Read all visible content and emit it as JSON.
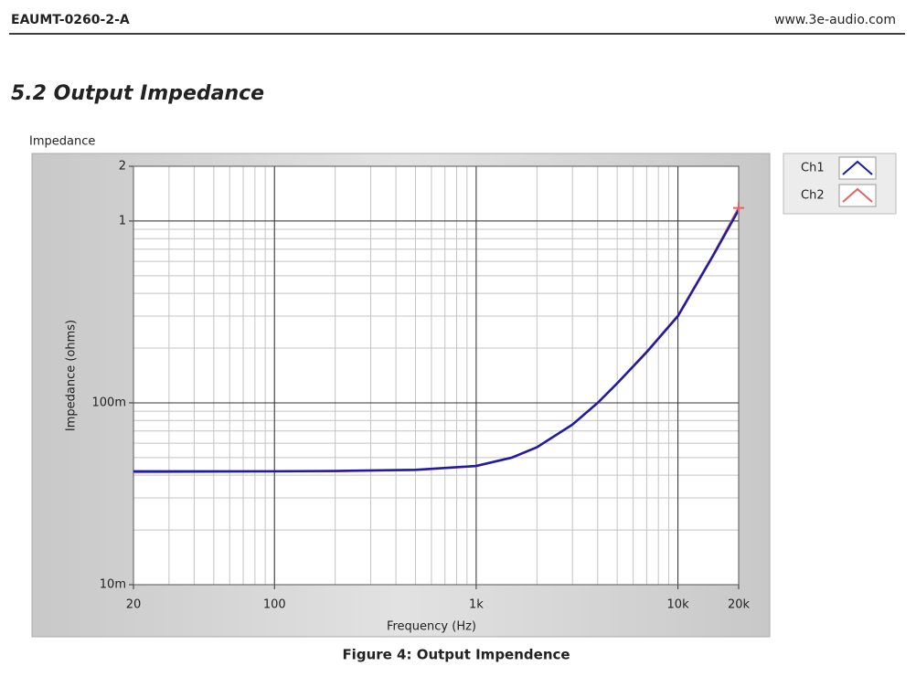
{
  "header": {
    "doc_id": "EAUMT-0260-2-A",
    "website": "www.3e-audio.com"
  },
  "section_title": "5.2 Output Impedance",
  "chart_data": {
    "type": "line",
    "title": "Impedance",
    "x_label": "Frequency (Hz)",
    "y_label": "Impedance (ohms)",
    "x": [
      20,
      50,
      100,
      200,
      500,
      1000,
      1500,
      2000,
      3000,
      4000,
      5000,
      7000,
      10000,
      15000,
      20000
    ],
    "series": [
      {
        "name": "Ch1",
        "color": "#1c1ca8",
        "values": [
          0.042,
          0.042,
          0.042,
          0.0422,
          0.0428,
          0.045,
          0.05,
          0.057,
          0.076,
          0.1,
          0.128,
          0.19,
          0.3,
          0.65,
          1.15
        ]
      },
      {
        "name": "Ch2",
        "color": "#e06666",
        "values": [
          0.0415,
          0.0418,
          0.042,
          0.0421,
          0.0427,
          0.0449,
          0.0499,
          0.0569,
          0.0759,
          0.1,
          0.128,
          0.191,
          0.302,
          0.655,
          1.18
        ]
      }
    ],
    "log_x": true,
    "log_y": true,
    "xlim": [
      20,
      20000
    ],
    "ylim": [
      0.01,
      2
    ],
    "xticks": [
      20,
      100,
      {
        "value": 1000,
        "label": "1k"
      },
      {
        "value": 10000,
        "label": "10k"
      },
      {
        "value": 20000,
        "label": "20k"
      }
    ],
    "yticks": [
      {
        "value": 0.01,
        "label": "10m"
      },
      {
        "value": 0.1,
        "label": "100m"
      },
      1,
      2
    ],
    "grid": true,
    "minor_grid": true,
    "legend": "top-right"
  },
  "caption": "Figure 4: Output Impendence"
}
